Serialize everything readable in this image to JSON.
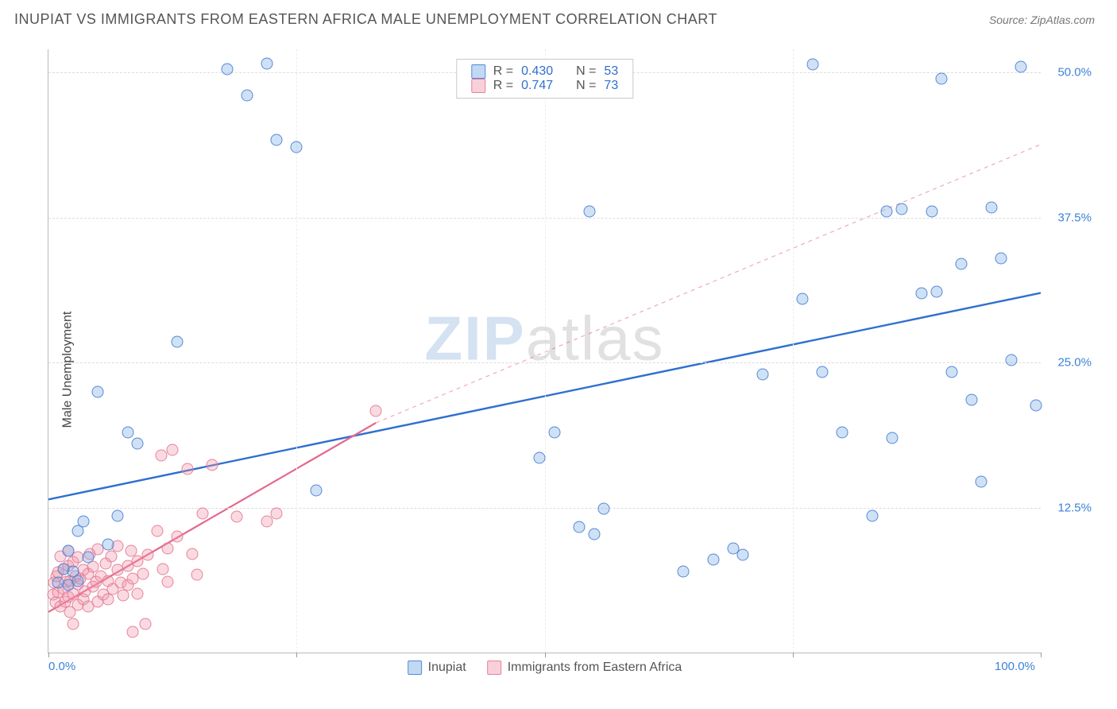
{
  "title": "INUPIAT VS IMMIGRANTS FROM EASTERN AFRICA MALE UNEMPLOYMENT CORRELATION CHART",
  "source": "Source: ZipAtlas.com",
  "y_axis_label": "Male Unemployment",
  "watermark_a": "ZIP",
  "watermark_b": "atlas",
  "chart": {
    "type": "scatter",
    "xlim": [
      0,
      100
    ],
    "ylim": [
      0,
      52
    ],
    "x_ticks": [
      0,
      25,
      50,
      75,
      100
    ],
    "x_tick_labels": {
      "0": "0.0%",
      "100": "100.0%"
    },
    "y_gridlines": [
      12.5,
      25.0,
      37.5,
      50.0
    ],
    "y_tick_labels": [
      "12.5%",
      "25.0%",
      "37.5%",
      "50.0%"
    ],
    "background_color": "#ffffff",
    "grid_color": "#dddddd",
    "axis_color": "#bbbbbb",
    "point_radius": 7.5
  },
  "series": {
    "inupiat": {
      "label": "Inupiat",
      "color_fill": "rgba(120,170,230,0.35)",
      "color_stroke": "rgba(70,130,210,0.9)",
      "stats": {
        "R": "0.430",
        "N": "53"
      },
      "trend": {
        "type": "line",
        "x1": 0,
        "y1": 13.2,
        "x2": 100,
        "y2": 31.0,
        "dash": "none",
        "width": 2.4,
        "color": "#2f6fd0"
      },
      "points": [
        [
          1,
          6
        ],
        [
          1.5,
          7.2
        ],
        [
          2,
          5.8
        ],
        [
          2,
          8.8
        ],
        [
          2.5,
          7
        ],
        [
          3,
          10.5
        ],
        [
          3,
          6.2
        ],
        [
          3.5,
          11.3
        ],
        [
          4,
          8.2
        ],
        [
          5,
          22.5
        ],
        [
          6,
          9.3
        ],
        [
          7,
          11.8
        ],
        [
          8,
          19
        ],
        [
          9,
          18
        ],
        [
          13,
          26.8
        ],
        [
          18,
          50.3
        ],
        [
          20,
          48
        ],
        [
          22,
          50.8
        ],
        [
          23,
          44.2
        ],
        [
          25,
          43.6
        ],
        [
          27,
          14
        ],
        [
          49.5,
          16.8
        ],
        [
          51,
          19
        ],
        [
          53.5,
          10.8
        ],
        [
          54.5,
          38
        ],
        [
          55,
          10.2
        ],
        [
          56,
          12.4
        ],
        [
          64,
          7
        ],
        [
          67,
          8
        ],
        [
          69,
          9
        ],
        [
          70,
          8.4
        ],
        [
          72,
          24
        ],
        [
          76,
          30.5
        ],
        [
          77,
          50.7
        ],
        [
          78,
          24.2
        ],
        [
          80,
          19
        ],
        [
          83,
          11.8
        ],
        [
          84.5,
          38
        ],
        [
          85,
          18.5
        ],
        [
          86,
          38.2
        ],
        [
          88,
          31
        ],
        [
          89,
          38
        ],
        [
          89.5,
          31.1
        ],
        [
          90,
          49.5
        ],
        [
          91,
          24.2
        ],
        [
          92,
          33.5
        ],
        [
          93,
          21.8
        ],
        [
          94,
          14.7
        ],
        [
          95,
          38.4
        ],
        [
          96,
          34
        ],
        [
          97,
          25.2
        ],
        [
          98,
          50.5
        ],
        [
          99.5,
          21.3
        ]
      ]
    },
    "immigrants": {
      "label": "Immigrants from Eastern Africa",
      "color_fill": "rgba(240,150,170,0.35)",
      "color_stroke": "rgba(230,120,150,0.9)",
      "stats": {
        "R": "0.747",
        "N": "73"
      },
      "trend_solid": {
        "type": "line",
        "x1": 0,
        "y1": 3.5,
        "x2": 33,
        "y2": 19.8,
        "dash": "none",
        "width": 2.2,
        "color": "#e46a8c"
      },
      "trend_dash": {
        "type": "line",
        "x1": 33,
        "y1": 19.8,
        "x2": 100,
        "y2": 43.8,
        "dash": "5,5",
        "width": 1.2,
        "color": "#f2a8bc"
      },
      "points": [
        [
          0.5,
          5
        ],
        [
          0.6,
          6
        ],
        [
          0.7,
          4.3
        ],
        [
          0.8,
          6.6
        ],
        [
          1,
          5.2
        ],
        [
          1,
          6.9
        ],
        [
          1.2,
          4
        ],
        [
          1.2,
          8.3
        ],
        [
          1.5,
          5.5
        ],
        [
          1.5,
          7.2
        ],
        [
          1.7,
          4.4
        ],
        [
          1.8,
          6.1
        ],
        [
          2,
          4.8
        ],
        [
          2,
          7.5
        ],
        [
          2,
          8.8
        ],
        [
          2.2,
          3.5
        ],
        [
          2.2,
          6.2
        ],
        [
          2.5,
          5.1
        ],
        [
          2.5,
          7.8
        ],
        [
          2.5,
          2.5
        ],
        [
          2.7,
          6.6
        ],
        [
          3,
          4.1
        ],
        [
          3,
          5.9
        ],
        [
          3,
          8.2
        ],
        [
          3.2,
          6.4
        ],
        [
          3.5,
          4.6
        ],
        [
          3.5,
          7.1
        ],
        [
          3.7,
          5.3
        ],
        [
          4,
          6.8
        ],
        [
          4,
          4
        ],
        [
          4.2,
          8.5
        ],
        [
          4.5,
          5.7
        ],
        [
          4.5,
          7.4
        ],
        [
          4.8,
          6.1
        ],
        [
          5,
          4.4
        ],
        [
          5,
          8.9
        ],
        [
          5.3,
          6.6
        ],
        [
          5.5,
          5
        ],
        [
          5.8,
          7.7
        ],
        [
          6,
          6.2
        ],
        [
          6,
          4.6
        ],
        [
          6.3,
          8.3
        ],
        [
          6.5,
          5.5
        ],
        [
          7,
          7.1
        ],
        [
          7,
          9.2
        ],
        [
          7.3,
          6
        ],
        [
          7.5,
          4.9
        ],
        [
          8,
          7.5
        ],
        [
          8,
          5.8
        ],
        [
          8.3,
          8.8
        ],
        [
          8.5,
          6.4
        ],
        [
          8.5,
          1.8
        ],
        [
          9,
          7.9
        ],
        [
          9,
          5.1
        ],
        [
          9.5,
          6.8
        ],
        [
          9.8,
          2.5
        ],
        [
          10,
          8.4
        ],
        [
          11,
          10.5
        ],
        [
          11.4,
          17
        ],
        [
          11.5,
          7.2
        ],
        [
          12,
          6.1
        ],
        [
          12,
          9
        ],
        [
          12.5,
          17.5
        ],
        [
          13,
          10
        ],
        [
          14,
          15.8
        ],
        [
          14.5,
          8.5
        ],
        [
          15,
          6.7
        ],
        [
          15.5,
          12
        ],
        [
          16.5,
          16.2
        ],
        [
          19,
          11.7
        ],
        [
          22,
          11.3
        ],
        [
          23,
          12
        ],
        [
          33,
          20.8
        ]
      ]
    }
  },
  "legend_stats_rows": [
    {
      "series": "inupiat",
      "r_label": "R =",
      "n_label": "N ="
    },
    {
      "series": "immigrants",
      "r_label": "R =",
      "n_label": "N ="
    }
  ],
  "bottom_legend": [
    "inupiat",
    "immigrants"
  ]
}
